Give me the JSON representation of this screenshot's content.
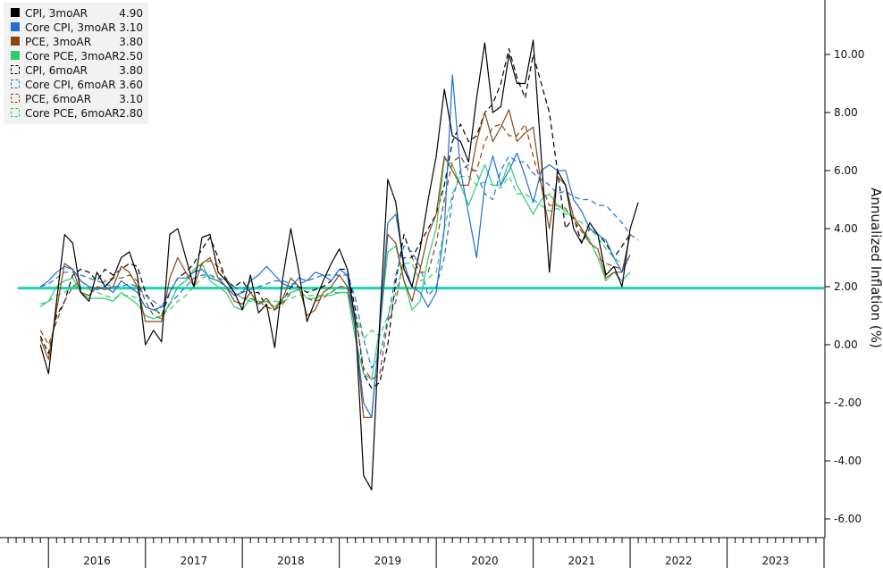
{
  "chart_data": {
    "type": "line",
    "title": "",
    "xlabel": "",
    "ylabel": "Annualized Inflation (%)",
    "ylim": [
      -6.5,
      11.5
    ],
    "yticks": [
      "10.00",
      "8.00",
      "6.00",
      "4.00",
      "2.00",
      "0.00",
      "-2.00",
      "-4.00",
      "-6.00"
    ],
    "ytick_values": [
      10,
      8,
      6,
      4,
      2,
      0,
      -2,
      -4,
      -6
    ],
    "year_labels": [
      "2016",
      "2017",
      "2018",
      "2019",
      "2020",
      "2021",
      "2022",
      "2023"
    ],
    "year_values": [
      2016,
      2017,
      2018,
      2019,
      2020,
      2021,
      2022,
      2023
    ],
    "xlim": [
      2015.5,
      2024.0
    ],
    "x_start": 2015.917,
    "x_step": 0.08333,
    "legend_position": "top-left",
    "reference_line": {
      "value": 1.95,
      "color": "#1dd3b0"
    },
    "series": [
      {
        "name": "CPI, 3moAR",
        "last": "4.90",
        "color": "#000000",
        "dashed": false,
        "values": [
          0.0,
          -1.0,
          1.5,
          3.8,
          3.5,
          1.8,
          1.5,
          2.5,
          2.0,
          2.3,
          3.0,
          3.2,
          2.4,
          0.0,
          0.5,
          0.1,
          3.8,
          4.0,
          3.0,
          2.0,
          3.7,
          3.8,
          2.5,
          2.2,
          1.8,
          1.2,
          2.4,
          1.1,
          1.4,
          -0.1,
          2.3,
          4.0,
          2.5,
          0.8,
          1.5,
          2.2,
          2.8,
          3.3,
          2.6,
          0.8,
          -4.5,
          -5.0,
          0.8,
          5.7,
          4.9,
          2.6,
          2.0,
          3.3,
          5.0,
          6.5,
          8.8,
          7.2,
          7.0,
          6.3,
          8.5,
          10.4,
          8.0,
          8.2,
          10.0,
          9.0,
          9.0,
          10.5,
          6.5,
          2.5,
          6.0,
          5.5,
          4.0,
          3.5,
          4.2,
          3.8,
          2.4,
          2.7,
          2.0,
          4.0,
          4.9
        ]
      },
      {
        "name": "Core CPI, 3moAR",
        "last": "3.10",
        "color": "#1f6fd6",
        "dashed": false,
        "values": [
          2.0,
          2.2,
          2.5,
          2.7,
          2.6,
          2.2,
          2.0,
          1.9,
          2.0,
          1.8,
          2.2,
          2.0,
          1.8,
          1.3,
          1.2,
          1.3,
          1.8,
          2.3,
          2.3,
          2.5,
          2.6,
          2.3,
          2.2,
          2.0,
          1.7,
          1.8,
          2.2,
          2.4,
          2.7,
          2.4,
          2.1,
          2.0,
          2.3,
          2.2,
          2.5,
          2.4,
          2.2,
          2.6,
          2.4,
          0.5,
          -2.0,
          -2.5,
          0.5,
          4.2,
          4.5,
          2.8,
          2.0,
          1.8,
          1.3,
          1.8,
          4.0,
          9.3,
          6.0,
          4.5,
          3.0,
          5.5,
          6.5,
          5.5,
          6.0,
          6.6,
          5.8,
          4.9,
          6.0,
          6.2,
          6.0,
          6.0,
          5.0,
          4.6,
          4.0,
          3.8,
          3.6,
          3.0,
          2.5,
          3.1
        ]
      },
      {
        "name": "PCE, 3moAR",
        "last": "3.80",
        "color": "#8b4513",
        "dashed": false,
        "values": [
          0.2,
          -0.5,
          1.2,
          2.8,
          2.6,
          1.8,
          1.7,
          2.0,
          1.9,
          2.0,
          2.7,
          2.5,
          2.0,
          0.8,
          0.8,
          0.8,
          2.3,
          3.0,
          2.5,
          2.0,
          2.8,
          3.0,
          2.3,
          2.0,
          1.5,
          1.4,
          1.8,
          1.4,
          1.6,
          1.2,
          1.6,
          2.3,
          2.0,
          1.0,
          1.2,
          1.8,
          2.0,
          2.4,
          2.0,
          0.5,
          -2.5,
          -2.5,
          0.5,
          3.8,
          3.5,
          2.2,
          1.5,
          2.6,
          3.8,
          4.5,
          6.5,
          6.0,
          5.5,
          5.5,
          7.0,
          8.0,
          7.0,
          7.5,
          8.1,
          7.0,
          7.3,
          7.5,
          5.5,
          4.0,
          5.8,
          5.5,
          4.4,
          4.0,
          3.5,
          3.3,
          2.3,
          2.5,
          2.5,
          3.8
        ]
      },
      {
        "name": "Core PCE, 3moAR",
        "last": "2.50",
        "color": "#2ecc71",
        "dashed": false,
        "values": [
          1.3,
          1.5,
          2.0,
          2.2,
          2.3,
          1.8,
          1.6,
          1.6,
          1.6,
          1.5,
          1.8,
          1.6,
          1.4,
          1.0,
          0.9,
          1.0,
          1.4,
          2.0,
          2.2,
          2.6,
          2.8,
          2.2,
          2.0,
          1.8,
          1.3,
          1.2,
          1.6,
          1.4,
          1.5,
          1.3,
          1.6,
          1.8,
          1.9,
          1.6,
          1.6,
          1.7,
          1.7,
          1.8,
          1.8,
          0.2,
          -1.0,
          -1.2,
          0.6,
          3.2,
          3.4,
          2.2,
          1.2,
          1.5,
          3.0,
          4.0,
          6.4,
          6.2,
          5.5,
          4.8,
          5.5,
          6.2,
          5.5,
          5.5,
          6.3,
          5.5,
          5.0,
          4.5,
          5.0,
          5.2,
          4.8,
          4.6,
          4.4,
          4.0,
          3.6,
          3.0,
          2.2,
          2.5,
          2.2,
          2.5
        ]
      },
      {
        "name": "CPI, 6moAR",
        "last": "3.80",
        "color": "#000000",
        "dashed": true,
        "values": [
          0.3,
          -0.3,
          1.0,
          1.5,
          2.4,
          2.6,
          2.5,
          2.2,
          2.6,
          2.4,
          2.6,
          2.8,
          2.7,
          1.8,
          1.3,
          1.0,
          1.8,
          2.3,
          2.5,
          2.8,
          3.3,
          3.7,
          3.0,
          2.2,
          2.0,
          2.2,
          1.8,
          1.8,
          1.3,
          1.2,
          1.5,
          2.0,
          2.0,
          1.8,
          1.9,
          2.0,
          2.2,
          2.6,
          2.6,
          1.2,
          -1.0,
          -1.5,
          -1.3,
          0.0,
          2.2,
          3.8,
          3.0,
          3.5,
          4.0,
          4.5,
          5.5,
          7.0,
          7.6,
          7.0,
          7.2,
          8.0,
          8.3,
          9.0,
          10.2,
          9.2,
          8.5,
          10.0,
          9.0,
          8.0,
          6.0,
          4.0,
          4.4,
          3.5,
          4.0,
          3.8,
          3.5,
          3.0,
          3.4,
          3.8
        ]
      },
      {
        "name": "Core CPI, 6moAR",
        "last": "3.60",
        "color": "#1f6fd6",
        "dashed": true,
        "values": [
          2.0,
          2.1,
          2.3,
          2.5,
          2.5,
          2.4,
          2.3,
          2.2,
          2.1,
          2.0,
          2.0,
          2.1,
          2.0,
          1.7,
          1.5,
          1.3,
          1.4,
          1.7,
          2.0,
          2.3,
          2.4,
          2.4,
          2.3,
          2.2,
          2.0,
          1.8,
          1.9,
          2.0,
          2.1,
          2.2,
          2.2,
          2.1,
          2.1,
          2.2,
          2.3,
          2.4,
          2.4,
          2.4,
          2.4,
          1.6,
          0.2,
          -0.8,
          -0.4,
          0.9,
          2.4,
          3.4,
          3.2,
          2.7,
          1.7,
          2.0,
          3.0,
          5.0,
          6.0,
          6.2,
          5.9,
          5.2,
          5.0,
          6.0,
          6.5,
          6.3,
          6.3,
          5.9,
          5.7,
          5.5,
          5.2,
          5.3,
          5.1,
          5.0,
          5.0,
          4.8,
          4.8,
          4.5,
          4.2,
          3.8,
          3.6
        ]
      },
      {
        "name": "PCE, 6moAR",
        "last": "3.10",
        "color": "#8b4513",
        "dashed": true,
        "values": [
          0.5,
          0.0,
          0.8,
          1.5,
          2.0,
          2.2,
          2.0,
          1.9,
          2.2,
          2.3,
          2.3,
          2.4,
          2.2,
          1.5,
          1.0,
          0.9,
          1.4,
          2.0,
          2.2,
          2.5,
          2.8,
          2.9,
          2.7,
          2.3,
          1.8,
          1.6,
          1.6,
          1.5,
          1.3,
          1.2,
          1.4,
          1.8,
          1.9,
          1.6,
          1.5,
          1.6,
          1.8,
          2.0,
          2.0,
          1.0,
          -0.8,
          -1.2,
          -1.0,
          0.8,
          1.5,
          3.0,
          3.0,
          2.5,
          2.5,
          3.5,
          5.0,
          6.3,
          6.5,
          6.0,
          6.0,
          7.0,
          7.5,
          7.6,
          7.2,
          7.2,
          7.6,
          6.5,
          5.5,
          4.8,
          4.8,
          4.7,
          4.3,
          3.9,
          3.6,
          3.0,
          2.8,
          2.7,
          2.6,
          3.1
        ]
      },
      {
        "name": "Core PCE, 6moAR",
        "last": "2.80",
        "color": "#2ecc71",
        "dashed": true,
        "values": [
          1.4,
          1.5,
          1.7,
          1.8,
          2.0,
          2.0,
          1.9,
          1.8,
          1.7,
          1.6,
          1.7,
          1.7,
          1.6,
          1.3,
          1.2,
          1.1,
          1.2,
          1.5,
          1.7,
          2.0,
          2.3,
          2.4,
          2.2,
          2.0,
          1.8,
          1.6,
          1.5,
          1.5,
          1.5,
          1.5,
          1.5,
          1.6,
          1.7,
          1.7,
          1.7,
          1.7,
          1.8,
          1.8,
          1.8,
          1.1,
          0.2,
          0.5,
          0.3,
          1.0,
          1.8,
          2.8,
          2.8,
          2.2,
          2.3,
          2.5,
          4.0,
          5.2,
          5.8,
          5.8,
          5.5,
          5.6,
          5.5,
          5.4,
          5.8,
          5.2,
          5.2,
          5.0,
          4.8,
          4.6,
          4.7,
          4.5,
          4.4,
          4.2,
          4.0,
          3.7,
          3.3,
          3.0,
          2.8
        ]
      }
    ]
  }
}
